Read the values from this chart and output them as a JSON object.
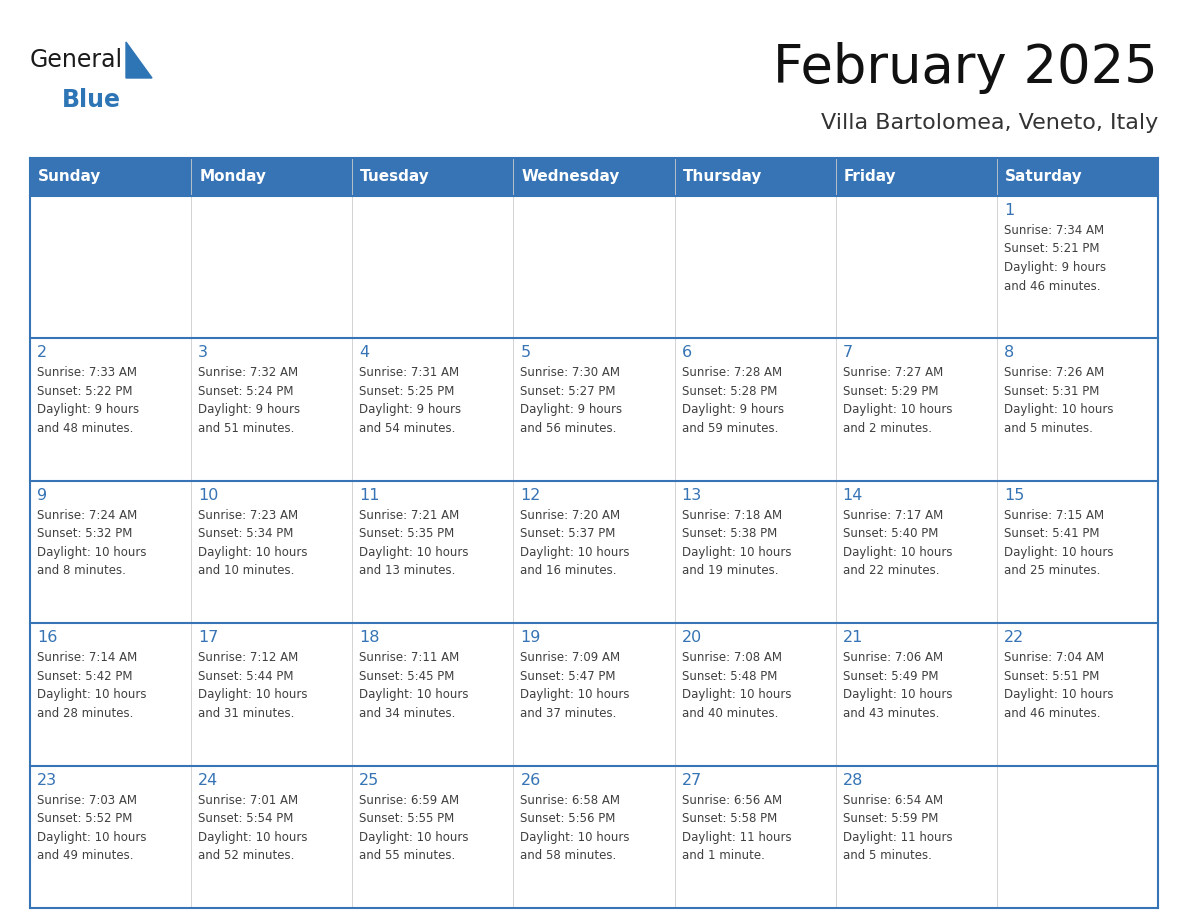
{
  "title": "February 2025",
  "subtitle": "Villa Bartolomea, Veneto, Italy",
  "header_color": "#3674B5",
  "header_text_color": "#FFFFFF",
  "header_days": [
    "Sunday",
    "Monday",
    "Tuesday",
    "Wednesday",
    "Thursday",
    "Friday",
    "Saturday"
  ],
  "background_color": "#FFFFFF",
  "cell_bg_white": "#FFFFFF",
  "cell_bg_gray": "#F2F2F2",
  "border_color": "#3674B5",
  "day_number_color": "#3674B5",
  "text_color": "#404040",
  "logo_general_color": "#1A1A1A",
  "logo_blue_color": "#2E75B6",
  "weeks": [
    [
      {
        "day": null,
        "info": null
      },
      {
        "day": null,
        "info": null
      },
      {
        "day": null,
        "info": null
      },
      {
        "day": null,
        "info": null
      },
      {
        "day": null,
        "info": null
      },
      {
        "day": null,
        "info": null
      },
      {
        "day": 1,
        "info": "Sunrise: 7:34 AM\nSunset: 5:21 PM\nDaylight: 9 hours\nand 46 minutes."
      }
    ],
    [
      {
        "day": 2,
        "info": "Sunrise: 7:33 AM\nSunset: 5:22 PM\nDaylight: 9 hours\nand 48 minutes."
      },
      {
        "day": 3,
        "info": "Sunrise: 7:32 AM\nSunset: 5:24 PM\nDaylight: 9 hours\nand 51 minutes."
      },
      {
        "day": 4,
        "info": "Sunrise: 7:31 AM\nSunset: 5:25 PM\nDaylight: 9 hours\nand 54 minutes."
      },
      {
        "day": 5,
        "info": "Sunrise: 7:30 AM\nSunset: 5:27 PM\nDaylight: 9 hours\nand 56 minutes."
      },
      {
        "day": 6,
        "info": "Sunrise: 7:28 AM\nSunset: 5:28 PM\nDaylight: 9 hours\nand 59 minutes."
      },
      {
        "day": 7,
        "info": "Sunrise: 7:27 AM\nSunset: 5:29 PM\nDaylight: 10 hours\nand 2 minutes."
      },
      {
        "day": 8,
        "info": "Sunrise: 7:26 AM\nSunset: 5:31 PM\nDaylight: 10 hours\nand 5 minutes."
      }
    ],
    [
      {
        "day": 9,
        "info": "Sunrise: 7:24 AM\nSunset: 5:32 PM\nDaylight: 10 hours\nand 8 minutes."
      },
      {
        "day": 10,
        "info": "Sunrise: 7:23 AM\nSunset: 5:34 PM\nDaylight: 10 hours\nand 10 minutes."
      },
      {
        "day": 11,
        "info": "Sunrise: 7:21 AM\nSunset: 5:35 PM\nDaylight: 10 hours\nand 13 minutes."
      },
      {
        "day": 12,
        "info": "Sunrise: 7:20 AM\nSunset: 5:37 PM\nDaylight: 10 hours\nand 16 minutes."
      },
      {
        "day": 13,
        "info": "Sunrise: 7:18 AM\nSunset: 5:38 PM\nDaylight: 10 hours\nand 19 minutes."
      },
      {
        "day": 14,
        "info": "Sunrise: 7:17 AM\nSunset: 5:40 PM\nDaylight: 10 hours\nand 22 minutes."
      },
      {
        "day": 15,
        "info": "Sunrise: 7:15 AM\nSunset: 5:41 PM\nDaylight: 10 hours\nand 25 minutes."
      }
    ],
    [
      {
        "day": 16,
        "info": "Sunrise: 7:14 AM\nSunset: 5:42 PM\nDaylight: 10 hours\nand 28 minutes."
      },
      {
        "day": 17,
        "info": "Sunrise: 7:12 AM\nSunset: 5:44 PM\nDaylight: 10 hours\nand 31 minutes."
      },
      {
        "day": 18,
        "info": "Sunrise: 7:11 AM\nSunset: 5:45 PM\nDaylight: 10 hours\nand 34 minutes."
      },
      {
        "day": 19,
        "info": "Sunrise: 7:09 AM\nSunset: 5:47 PM\nDaylight: 10 hours\nand 37 minutes."
      },
      {
        "day": 20,
        "info": "Sunrise: 7:08 AM\nSunset: 5:48 PM\nDaylight: 10 hours\nand 40 minutes."
      },
      {
        "day": 21,
        "info": "Sunrise: 7:06 AM\nSunset: 5:49 PM\nDaylight: 10 hours\nand 43 minutes."
      },
      {
        "day": 22,
        "info": "Sunrise: 7:04 AM\nSunset: 5:51 PM\nDaylight: 10 hours\nand 46 minutes."
      }
    ],
    [
      {
        "day": 23,
        "info": "Sunrise: 7:03 AM\nSunset: 5:52 PM\nDaylight: 10 hours\nand 49 minutes."
      },
      {
        "day": 24,
        "info": "Sunrise: 7:01 AM\nSunset: 5:54 PM\nDaylight: 10 hours\nand 52 minutes."
      },
      {
        "day": 25,
        "info": "Sunrise: 6:59 AM\nSunset: 5:55 PM\nDaylight: 10 hours\nand 55 minutes."
      },
      {
        "day": 26,
        "info": "Sunrise: 6:58 AM\nSunset: 5:56 PM\nDaylight: 10 hours\nand 58 minutes."
      },
      {
        "day": 27,
        "info": "Sunrise: 6:56 AM\nSunset: 5:58 PM\nDaylight: 11 hours\nand 1 minute."
      },
      {
        "day": 28,
        "info": "Sunrise: 6:54 AM\nSunset: 5:59 PM\nDaylight: 11 hours\nand 5 minutes."
      },
      {
        "day": null,
        "info": null
      }
    ]
  ]
}
